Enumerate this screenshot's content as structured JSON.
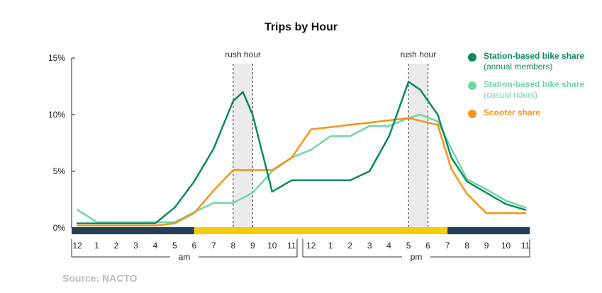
{
  "title": "Trips by Hour",
  "source": "Source: NACTO",
  "colors": {
    "series_0": "#0a8a5c",
    "series_1": "#6fd6a6",
    "series_2": "#f59418",
    "night_band": "#243f5a",
    "day_band": "#f5cc0a",
    "rush_shade": "#ebebeb"
  },
  "legend": [
    {
      "name": "Station-based bike share",
      "sub": "(annual members)"
    },
    {
      "name": "Station-based bike share",
      "sub": "(casual riders)"
    },
    {
      "name": "Scooter share",
      "sub": ""
    }
  ],
  "chart_data": {
    "type": "line",
    "title": "Trips by Hour",
    "xlabel": "",
    "ylabel": "",
    "ylim": [
      0,
      15
    ],
    "yticks": [
      "0%",
      "5%",
      "10%",
      "15%"
    ],
    "categories": [
      "12",
      "1",
      "2",
      "3",
      "4",
      "5",
      "6",
      "7",
      "8",
      "9",
      "10",
      "11",
      "12",
      "1",
      "2",
      "3",
      "4",
      "5",
      "6",
      "7",
      "8",
      "9",
      "10",
      "11"
    ],
    "period_labels": [
      "am",
      "pm"
    ],
    "annotations": [
      "rush hour",
      "rush hour"
    ],
    "rush_hours": [
      [
        8,
        9
      ],
      [
        17,
        18
      ]
    ],
    "bands": [
      {
        "kind": "night",
        "from": 0,
        "to": 6
      },
      {
        "kind": "day",
        "from": 6,
        "to": 19
      },
      {
        "kind": "night",
        "from": 19,
        "to": 23.2
      }
    ],
    "grid": false,
    "legend_position": "right",
    "series": [
      {
        "name": "Station-based bike share (annual members)",
        "x": [
          0,
          1,
          2,
          3,
          4,
          5,
          6,
          7,
          8,
          8.5,
          9,
          10,
          11,
          12,
          13,
          14,
          15,
          16,
          17,
          17.6,
          18.5,
          19.2,
          20,
          21,
          22,
          23
        ],
        "values": [
          0.4,
          0.4,
          0.4,
          0.4,
          0.4,
          1.8,
          4.1,
          7.0,
          11.2,
          12.0,
          10.0,
          3.2,
          4.2,
          4.2,
          4.2,
          4.2,
          5.0,
          8.1,
          12.9,
          12.2,
          10.0,
          6.2,
          4.1,
          3.1,
          2.1,
          1.6
        ]
      },
      {
        "name": "Station-based bike share (casual riders)",
        "x": [
          0,
          1,
          2,
          3,
          4,
          5,
          6,
          7,
          8,
          9,
          10,
          11,
          12,
          13,
          14,
          15,
          16,
          17,
          17.6,
          18.5,
          19.2,
          20,
          21,
          22,
          23
        ],
        "values": [
          1.6,
          0.5,
          0.5,
          0.5,
          0.5,
          0.5,
          1.4,
          2.2,
          2.2,
          3.1,
          5.0,
          6.2,
          6.9,
          8.1,
          8.1,
          9.0,
          9.0,
          9.7,
          10.0,
          9.4,
          7.0,
          4.3,
          3.4,
          2.4,
          1.8
        ]
      },
      {
        "name": "Scooter share",
        "x": [
          0,
          1,
          2,
          3,
          4,
          5,
          6,
          7,
          8,
          9,
          10,
          11,
          12,
          13,
          14,
          15,
          16,
          17,
          18.5,
          19.2,
          20,
          21,
          22,
          23
        ],
        "values": [
          0.2,
          0.2,
          0.2,
          0.2,
          0.2,
          0.4,
          1.3,
          3.3,
          5.1,
          5.1,
          5.1,
          6.2,
          8.7,
          8.9,
          9.1,
          9.3,
          9.5,
          9.7,
          9.1,
          5.2,
          3.0,
          1.3,
          1.3,
          1.3
        ]
      }
    ]
  }
}
